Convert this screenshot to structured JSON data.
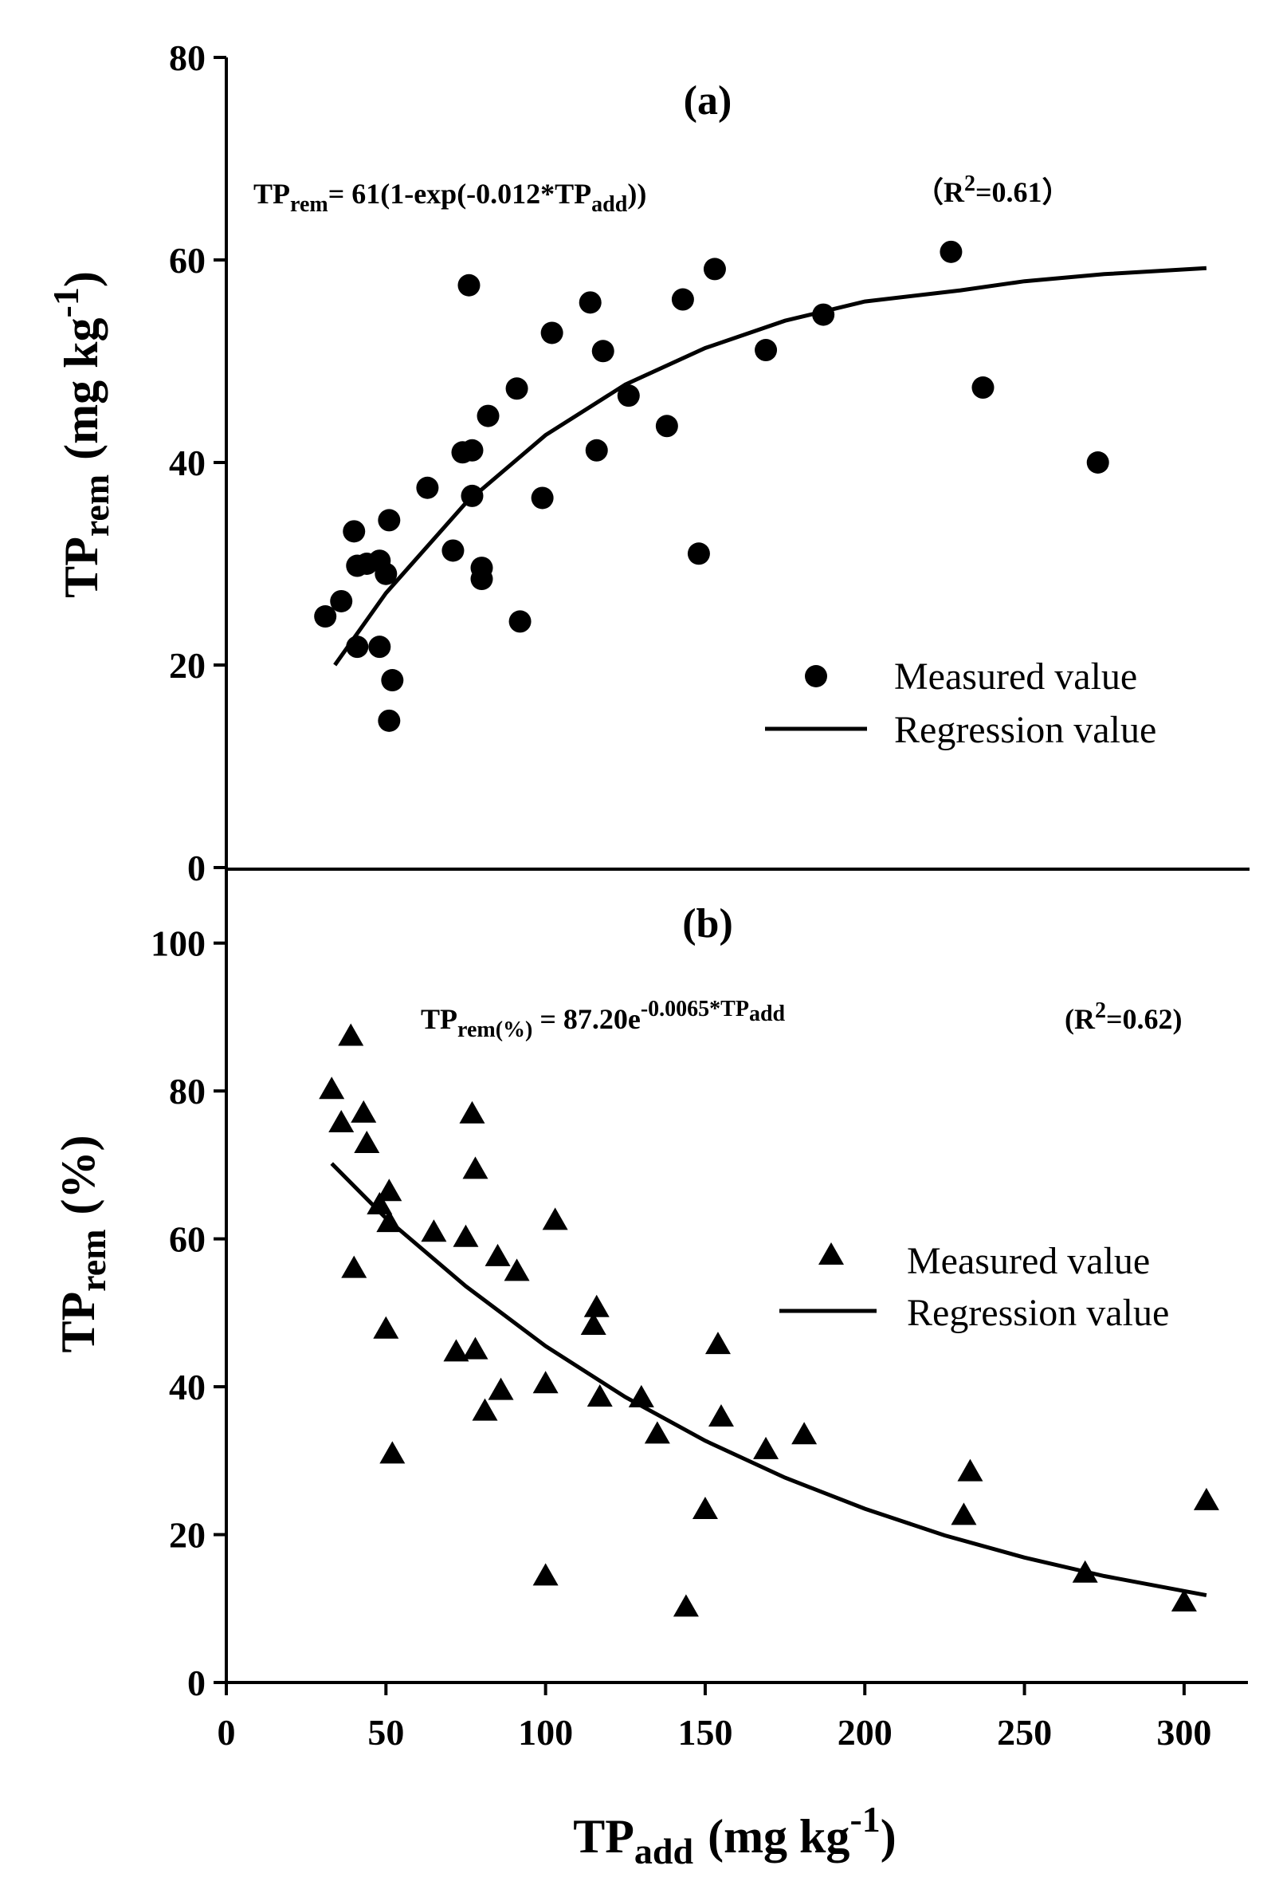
{
  "chart_data": [
    {
      "type": "scatter",
      "panel_label": "(a)",
      "equation": {
        "lhs": "TP",
        "lhs_sub": "rem",
        "mid": "= 61(1-exp(-0.012*TP",
        "mid_sub": "add",
        "tail": "))",
        "r2_pre": "（R",
        "r2_sup": "2",
        "r2_post": "=0.61）"
      },
      "ylabel": "TP",
      "ylabel_sub": "rem",
      "ylabel_unit": "(mg kg",
      "ylabel_unit_sup": "-1",
      "ylabel_unit_close": ")",
      "xlim": [
        0,
        320
      ],
      "ylim": [
        0,
        80
      ],
      "yticks": [
        0,
        20,
        40,
        60,
        80
      ],
      "legend": {
        "measured": "Measured value",
        "regression": "Regression value",
        "position": "lower-right"
      },
      "series": [
        {
          "name": "Measured value",
          "marker": "circle",
          "points": [
            [
              31,
              24.8
            ],
            [
              36,
              26.3
            ],
            [
              40,
              33.2
            ],
            [
              41,
              29.8
            ],
            [
              41,
              21.8
            ],
            [
              44,
              30.0
            ],
            [
              48,
              30.3
            ],
            [
              48,
              21.8
            ],
            [
              50,
              29.0
            ],
            [
              51,
              34.3
            ],
            [
              51,
              14.5
            ],
            [
              52,
              18.5
            ],
            [
              63,
              37.5
            ],
            [
              71,
              31.3
            ],
            [
              74,
              41.0
            ],
            [
              76,
              57.5
            ],
            [
              77,
              36.7
            ],
            [
              77,
              41.2
            ],
            [
              80,
              29.6
            ],
            [
              80,
              28.5
            ],
            [
              82,
              44.6
            ],
            [
              91,
              47.3
            ],
            [
              92,
              24.3
            ],
            [
              99,
              36.5
            ],
            [
              102,
              52.8
            ],
            [
              114,
              55.8
            ],
            [
              116,
              41.2
            ],
            [
              118,
              51.0
            ],
            [
              126,
              46.6
            ],
            [
              138,
              43.6
            ],
            [
              143,
              56.1
            ],
            [
              148,
              31.0
            ],
            [
              153,
              59.1
            ],
            [
              169,
              51.1
            ],
            [
              187,
              54.6
            ],
            [
              227,
              60.8
            ],
            [
              237,
              47.4
            ],
            [
              273,
              40.0
            ]
          ]
        },
        {
          "name": "Regression value",
          "marker": "line",
          "points": [
            [
              34,
              20.0
            ],
            [
              50,
              27.1
            ],
            [
              75,
              36.0
            ],
            [
              100,
              42.7
            ],
            [
              125,
              47.7
            ],
            [
              150,
              51.3
            ],
            [
              175,
              54.0
            ],
            [
              200,
              55.9
            ],
            [
              230,
              57.0
            ],
            [
              250,
              57.9
            ],
            [
              275,
              58.6
            ],
            [
              307,
              59.2
            ]
          ]
        }
      ]
    },
    {
      "type": "scatter",
      "panel_label": "(b)",
      "equation": {
        "lhs": "TP",
        "lhs_sub": "rem(%)",
        "mid": " = 87.20e",
        "exp_sup": "-0.0065*TP",
        "exp_sup_sub": "add",
        "r2_pre": "(R",
        "r2_sup": "2",
        "r2_post": "=0.62)"
      },
      "ylabel": "TP",
      "ylabel_sub": "rem",
      "ylabel_unit": "(%)",
      "xlabel": "TP",
      "xlabel_sub": "add",
      "xlabel_unit": "(mg kg",
      "xlabel_unit_sup": "-1",
      "xlabel_unit_close": ")",
      "xlim": [
        0,
        320
      ],
      "ylim": [
        0,
        110
      ],
      "xticks": [
        0,
        50,
        100,
        150,
        200,
        250,
        300
      ],
      "yticks": [
        0,
        20,
        40,
        60,
        80,
        100
      ],
      "legend": {
        "measured": "Measured value",
        "regression": "Regression value",
        "position": "right"
      },
      "series": [
        {
          "name": "Measured value",
          "marker": "triangle",
          "points": [
            [
              33,
              80.1
            ],
            [
              36,
              75.6
            ],
            [
              39,
              87.3
            ],
            [
              40,
              55.9
            ],
            [
              43,
              76.9
            ],
            [
              44,
              72.8
            ],
            [
              48,
              64.5
            ],
            [
              50,
              47.7
            ],
            [
              51,
              66.3
            ],
            [
              51,
              62.1
            ],
            [
              52,
              30.8
            ],
            [
              65,
              60.8
            ],
            [
              72,
              44.6
            ],
            [
              75,
              60.1
            ],
            [
              77,
              76.8
            ],
            [
              78,
              69.3
            ],
            [
              78,
              44.9
            ],
            [
              81,
              36.6
            ],
            [
              85,
              57.5
            ],
            [
              86,
              39.4
            ],
            [
              91,
              55.5
            ],
            [
              100,
              40.3
            ],
            [
              100,
              14.3
            ],
            [
              103,
              62.4
            ],
            [
              115,
              48.2
            ],
            [
              116,
              50.6
            ],
            [
              117,
              38.5
            ],
            [
              130,
              38.4
            ],
            [
              135,
              33.5
            ],
            [
              144,
              10.1
            ],
            [
              150,
              23.3
            ],
            [
              154,
              45.6
            ],
            [
              155,
              35.8
            ],
            [
              169,
              31.4
            ],
            [
              181,
              33.4
            ],
            [
              231,
              22.5
            ],
            [
              233,
              28.4
            ],
            [
              269,
              14.7
            ],
            [
              300,
              10.8
            ],
            [
              307,
              24.5
            ]
          ]
        },
        {
          "name": "Regression value",
          "marker": "line",
          "points": [
            [
              33,
              70.2
            ],
            [
              50,
              62.8
            ],
            [
              75,
              53.6
            ],
            [
              100,
              45.5
            ],
            [
              125,
              38.6
            ],
            [
              150,
              32.7
            ],
            [
              175,
              27.7
            ],
            [
              200,
              23.5
            ],
            [
              225,
              19.9
            ],
            [
              250,
              16.9
            ],
            [
              275,
              14.4
            ],
            [
              307,
              11.8
            ]
          ]
        }
      ]
    }
  ]
}
